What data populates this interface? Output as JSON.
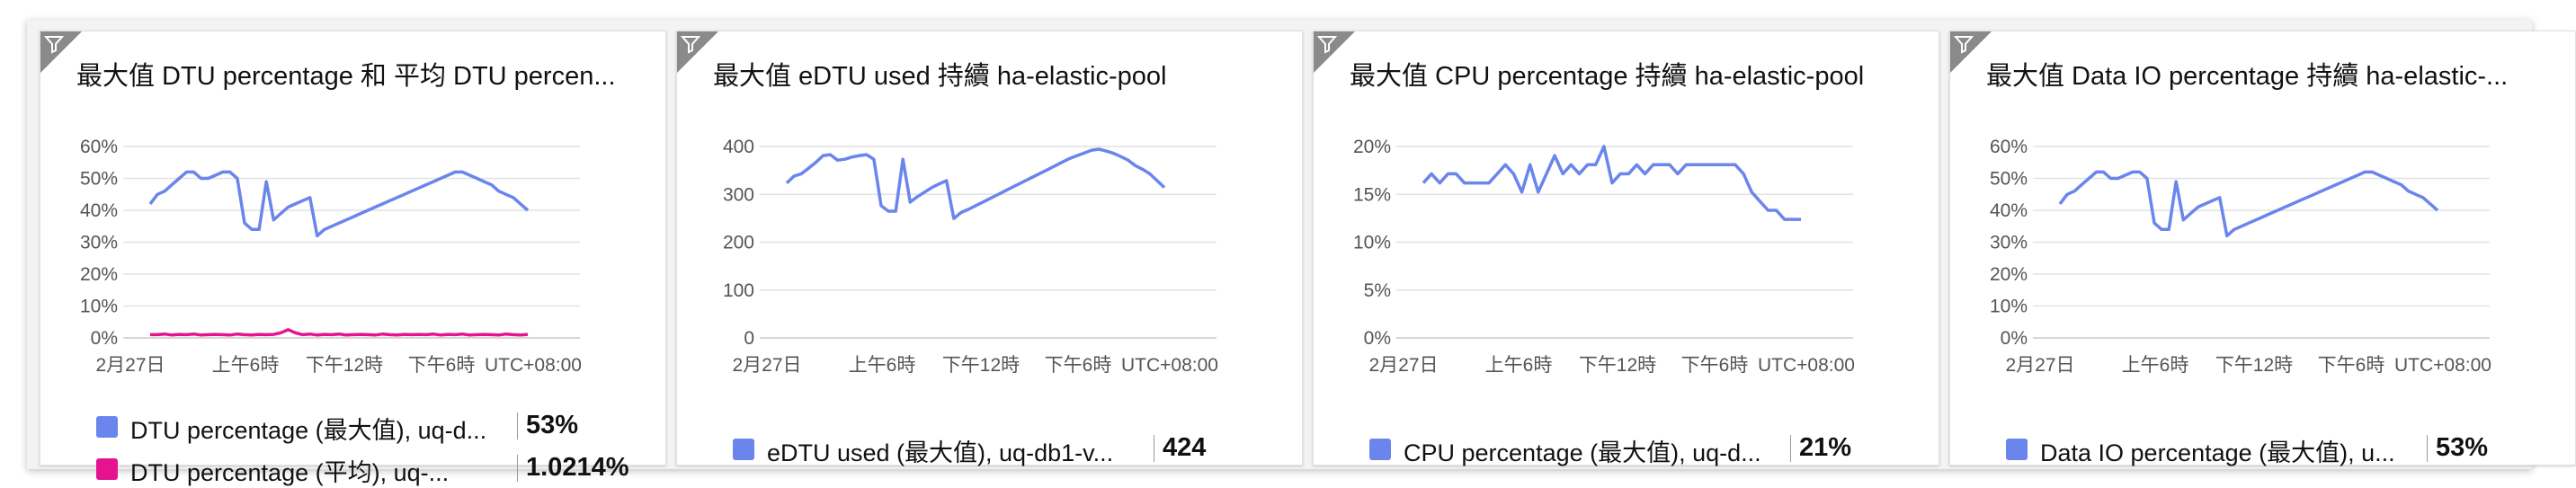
{
  "tiles": [
    {
      "title": "最大值 DTU percentage 和 平均 DTU percen...",
      "chart_data": {
        "type": "line",
        "x_labels": [
          "2月27日",
          "上午6時",
          "下午12時",
          "下午6時",
          "UTC+08:00"
        ],
        "y_labels": [
          "60%",
          "50%",
          "40%",
          "30%",
          "20%",
          "10%",
          "0%"
        ],
        "ylim": [
          0,
          60
        ],
        "grid": true,
        "series": [
          {
            "name": "DTU percentage (最大值), uq-d...",
            "color": "#6a85ec",
            "values": [
              42,
              45,
              46,
              48,
              50,
              52,
              52,
              50,
              50,
              51,
              52,
              52,
              50,
              36,
              34,
              34,
              49,
              37,
              39,
              41,
              42,
              43,
              44,
              32,
              34,
              35,
              36,
              37,
              38,
              39,
              40,
              41,
              42,
              43,
              44,
              45,
              46,
              47,
              48,
              49,
              50,
              51,
              52,
              52,
              51,
              50,
              49,
              48,
              46,
              45,
              44,
              42,
              40
            ]
          },
          {
            "name": "DTU percentage (平均), uq-...",
            "color": "#e3148e",
            "values": [
              1,
              1,
              1.2,
              0.9,
              1.1,
              1,
              1.2,
              0.9,
              1,
              1.1,
              1,
              0.9,
              1.2,
              1,
              0.9,
              1.1,
              1,
              1.1,
              1.6,
              2.6,
              1.6,
              1,
              1.2,
              0.9,
              1.1,
              1,
              1.2,
              0.9,
              1,
              1.1,
              1,
              0.9,
              1.2,
              1,
              0.9,
              1.1,
              1,
              1.1,
              1,
              1.2,
              0.9,
              1.1,
              1,
              1.2,
              0.9,
              1,
              1.1,
              1,
              0.9,
              1.2,
              1,
              0.9,
              1.1
            ]
          }
        ]
      },
      "legend": [
        {
          "label": "DTU percentage (最大值), uq-d...",
          "value": "53%",
          "color": "#6a85ec"
        },
        {
          "label": "DTU percentage (平均), uq-...",
          "value": "1.0214%",
          "color": "#e3148e"
        }
      ]
    },
    {
      "title": "最大值 eDTU used 持續 ha-elastic-pool",
      "chart_data": {
        "type": "line",
        "x_labels": [
          "2月27日",
          "上午6時",
          "下午12時",
          "下午6時",
          "UTC+08:00"
        ],
        "y_labels": [
          "400",
          "300",
          "200",
          "100",
          "0"
        ],
        "ylim": [
          0,
          420
        ],
        "grid": true,
        "series": [
          {
            "name": "eDTU used (最大值), uq-db1-v...",
            "color": "#6a85ec",
            "values": [
              340,
              355,
              360,
              372,
              385,
              400,
              402,
              390,
              392,
              397,
              400,
              402,
              392,
              290,
              278,
              278,
              392,
              298,
              310,
              320,
              330,
              338,
              345,
              262,
              275,
              282,
              290,
              298,
              306,
              314,
              322,
              330,
              338,
              346,
              354,
              362,
              370,
              378,
              386,
              394,
              400,
              406,
              412,
              414,
              410,
              405,
              398,
              390,
              378,
              370,
              360,
              345,
              330
            ]
          }
        ]
      },
      "legend": [
        {
          "label": "eDTU used (最大值), uq-db1-v...",
          "value": "424",
          "color": "#6a85ec"
        }
      ]
    },
    {
      "title": "最大值 CPU percentage 持續 ha-elastic-pool",
      "chart_data": {
        "type": "line",
        "x_labels": [
          "2月27日",
          "上午6時",
          "下午12時",
          "下午6時",
          "UTC+08:00"
        ],
        "y_labels": [
          "20%",
          "15%",
          "10%",
          "5%",
          "0%"
        ],
        "ylim": [
          0,
          21
        ],
        "grid": true,
        "series": [
          {
            "name": "CPU percentage (最大值), uq-d...",
            "color": "#6a85ec",
            "values": [
              17,
              18,
              17,
              18,
              18,
              17,
              17,
              17,
              17,
              18,
              19,
              18,
              16,
              19,
              16,
              18,
              20,
              18,
              19,
              18,
              19,
              19,
              21,
              17,
              18,
              18,
              19,
              18,
              19,
              19,
              19,
              18,
              19,
              19,
              19,
              19,
              19,
              19,
              19,
              18,
              16,
              15,
              14,
              14,
              13,
              13,
              13
            ]
          }
        ]
      },
      "legend": [
        {
          "label": "CPU percentage (最大值), uq-d...",
          "value": "21%",
          "color": "#6a85ec"
        }
      ]
    },
    {
      "title": "最大值 Data IO percentage 持續 ha-elastic-...",
      "chart_data": {
        "type": "line",
        "x_labels": [
          "2月27日",
          "上午6時",
          "下午12時",
          "下午6時",
          "UTC+08:00"
        ],
        "y_labels": [
          "60%",
          "50%",
          "40%",
          "30%",
          "20%",
          "10%",
          "0%"
        ],
        "ylim": [
          0,
          60
        ],
        "grid": true,
        "series": [
          {
            "name": "Data IO percentage (最大值), u...",
            "color": "#6a85ec",
            "values": [
              42,
              45,
              46,
              48,
              50,
              52,
              52,
              50,
              50,
              51,
              52,
              52,
              50,
              36,
              34,
              34,
              49,
              37,
              39,
              41,
              42,
              43,
              44,
              32,
              34,
              35,
              36,
              37,
              38,
              39,
              40,
              41,
              42,
              43,
              44,
              45,
              46,
              47,
              48,
              49,
              50,
              51,
              52,
              52,
              51,
              50,
              49,
              48,
              46,
              45,
              44,
              42,
              40
            ]
          }
        ]
      },
      "legend": [
        {
          "label": "Data IO percentage (最大值), u...",
          "value": "53%",
          "color": "#6a85ec"
        }
      ]
    }
  ]
}
